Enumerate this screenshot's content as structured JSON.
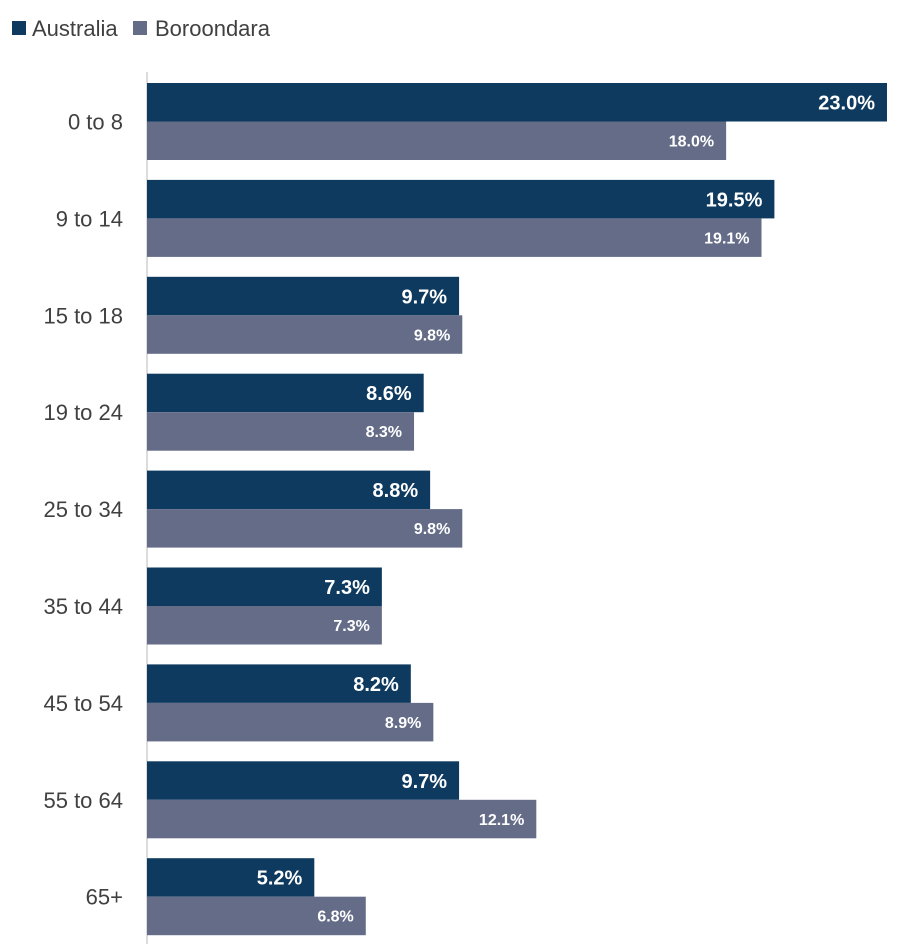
{
  "chart_data": {
    "type": "bar",
    "orientation": "horizontal",
    "title": "",
    "xlabel": "",
    "ylabel": "",
    "xlim": [
      0,
      23
    ],
    "grid": false,
    "legend_position": "top-left",
    "categories": [
      "0 to 8",
      "9 to 14",
      "15 to 18",
      "19 to 24",
      "25 to 34",
      "35 to 44",
      "45 to 54",
      "55 to 64",
      "65+"
    ],
    "series": [
      {
        "name": "Australia",
        "color": "#0e3a5f",
        "values": [
          23.0,
          19.5,
          9.7,
          8.6,
          8.8,
          7.3,
          8.2,
          9.7,
          5.2
        ],
        "labels": [
          "23.0%",
          "19.5%",
          "9.7%",
          "8.6%",
          "8.8%",
          "7.3%",
          "8.2%",
          "9.7%",
          "5.2%"
        ]
      },
      {
        "name": "Boroondara",
        "color": "#646c88",
        "values": [
          18.0,
          19.1,
          9.8,
          8.3,
          9.8,
          7.3,
          8.9,
          12.1,
          6.8
        ],
        "labels": [
          "18.0%",
          "19.1%",
          "9.8%",
          "8.3%",
          "9.8%",
          "7.3%",
          "8.9%",
          "12.1%",
          "6.8%"
        ]
      }
    ]
  },
  "colors": {
    "axis": "#d0d0d0",
    "category_text": "#404040",
    "value_text": "#ffffff"
  }
}
